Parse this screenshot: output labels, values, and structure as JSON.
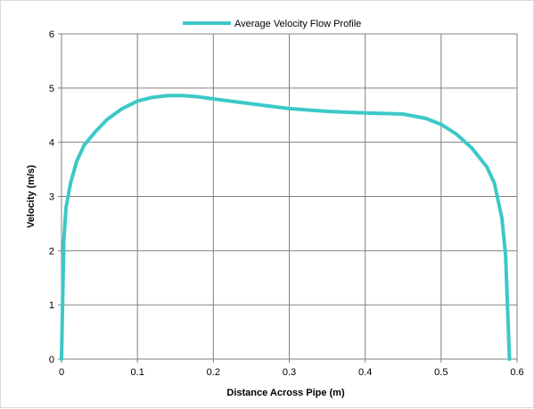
{
  "chart_data": {
    "type": "line",
    "title": "",
    "xlabel": "Distance Across Pipe (m)",
    "ylabel": "Velocity (m/s)",
    "xlim": [
      0,
      0.6
    ],
    "ylim": [
      0,
      6
    ],
    "x_ticks": [
      "0",
      "0.1",
      "0.2",
      "0.3",
      "0.4",
      "0.5",
      "0.6"
    ],
    "y_ticks": [
      "0",
      "1",
      "2",
      "3",
      "4",
      "5",
      "6"
    ],
    "grid": true,
    "legend_position": "top-center",
    "series": [
      {
        "name": "Average Velocity Flow Profile",
        "color": "#3cc8c8",
        "x": [
          0.0,
          0.003,
          0.006,
          0.012,
          0.02,
          0.03,
          0.045,
          0.06,
          0.08,
          0.1,
          0.12,
          0.14,
          0.16,
          0.18,
          0.2,
          0.25,
          0.3,
          0.35,
          0.4,
          0.45,
          0.48,
          0.5,
          0.52,
          0.54,
          0.56,
          0.57,
          0.58,
          0.585,
          0.59
        ],
        "y": [
          0.0,
          2.2,
          2.8,
          3.25,
          3.65,
          3.95,
          4.2,
          4.42,
          4.62,
          4.76,
          4.83,
          4.86,
          4.86,
          4.84,
          4.8,
          4.71,
          4.62,
          4.57,
          4.54,
          4.52,
          4.44,
          4.33,
          4.15,
          3.9,
          3.55,
          3.25,
          2.6,
          1.9,
          0.0
        ]
      }
    ]
  }
}
